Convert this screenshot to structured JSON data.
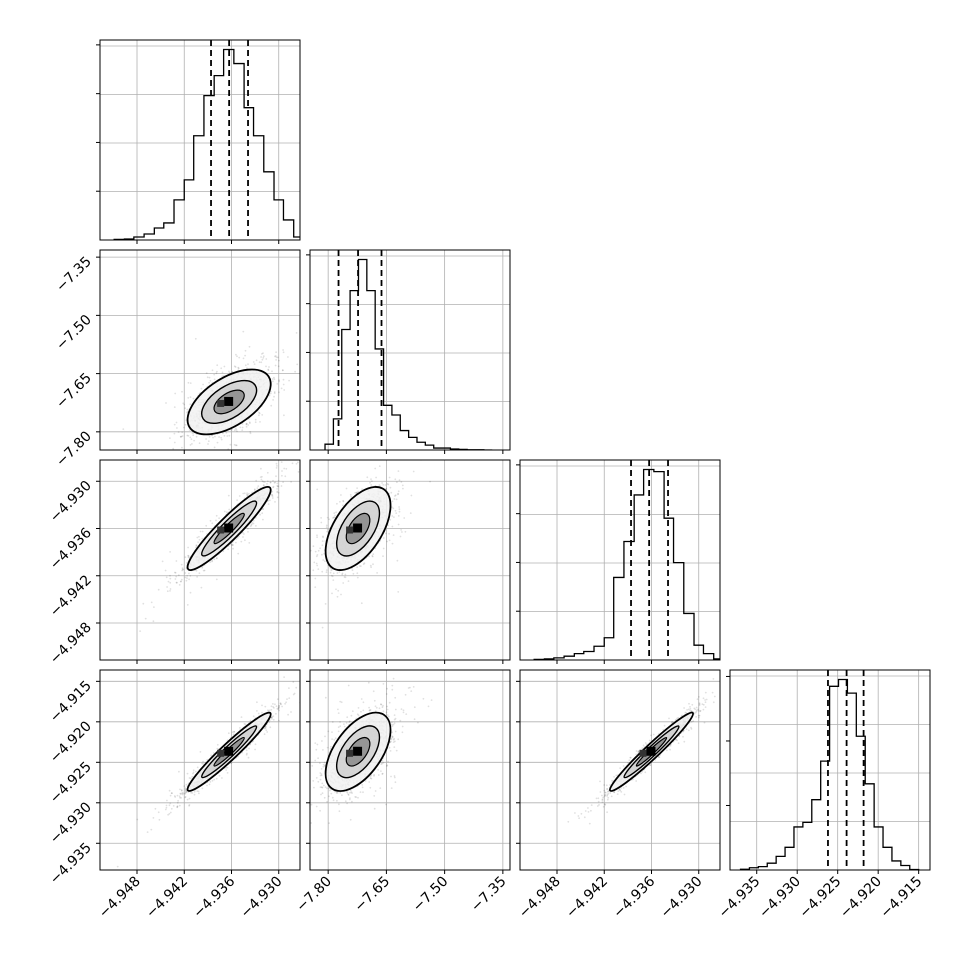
{
  "chart_data": {
    "type": "corner",
    "grid": true,
    "columns": [
      {
        "ticks": [
          "−4.948",
          "−4.942",
          "−4.936",
          "−4.930"
        ],
        "tick_values": [
          -4.948,
          -4.942,
          -4.936,
          -4.93
        ],
        "range": [
          -4.9527,
          -4.9273
        ]
      },
      {
        "ticks": [
          "−7.80",
          "−7.65",
          "−7.50",
          "−7.35"
        ],
        "tick_values": [
          -7.8,
          -7.65,
          -7.5,
          -7.35
        ],
        "range": [
          -7.8468,
          -7.3316
        ]
      },
      {
        "ticks": [
          "−4.948",
          "−4.942",
          "−4.936",
          "−4.930"
        ],
        "tick_values": [
          -4.948,
          -4.942,
          -4.936,
          -4.93
        ],
        "range": [
          -4.9527,
          -4.9273
        ]
      },
      {
        "ticks": [
          "−4.935",
          "−4.930",
          "−4.925",
          "−4.920",
          "−4.915"
        ],
        "tick_values": [
          -4.935,
          -4.93,
          -4.925,
          -4.92,
          -4.915
        ],
        "range": [
          -4.9383,
          -4.9136
        ]
      }
    ],
    "rows": [
      {
        "ticks": [],
        "tick_values": []
      },
      {
        "ticks": [
          "−7.35",
          "−7.50",
          "−7.65",
          "−7.80"
        ],
        "tick_values": [
          -7.35,
          -7.5,
          -7.65,
          -7.8
        ],
        "range": [
          -7.8468,
          -7.3316
        ]
      },
      {
        "ticks": [
          "−4.930",
          "−4.936",
          "−4.942",
          "−4.948"
        ],
        "tick_values": [
          -4.93,
          -4.936,
          -4.942,
          -4.948
        ],
        "range": [
          -4.9527,
          -4.9273
        ]
      },
      {
        "ticks": [
          "−4.915",
          "−4.920",
          "−4.925",
          "−4.930",
          "−4.935"
        ],
        "tick_values": [
          -4.915,
          -4.92,
          -4.925,
          -4.93,
          -4.935
        ],
        "range": [
          -4.9383,
          -4.9136
        ]
      }
    ],
    "histograms": [
      {
        "bins": [
          -4.9509,
          -4.9496,
          -4.9484,
          -4.9471,
          -4.9458,
          -4.9446,
          -4.9433,
          -4.942,
          -4.9408,
          -4.9395,
          -4.9382,
          -4.937,
          -4.9357,
          -4.9344,
          -4.9332,
          -4.9319,
          -4.9306,
          -4.9294,
          -4.9281,
          -4.9268,
          -4.9256
        ],
        "counts": [
          0.003,
          0.005,
          0.015,
          0.03,
          0.06,
          0.085,
          0.2,
          0.3,
          0.52,
          0.72,
          0.82,
          0.95,
          0.88,
          0.66,
          0.52,
          0.34,
          0.2,
          0.1,
          0.015,
          0.005
        ],
        "quantiles": [
          -4.9386,
          -4.9363,
          -4.9339
        ]
      },
      {
        "bins": [
          -7.8081,
          -7.7865,
          -7.765,
          -7.7435,
          -7.7219,
          -7.7004,
          -7.6789,
          -7.6573,
          -7.6358,
          -7.6143,
          -7.5927,
          -7.5712,
          -7.5497,
          -7.5281,
          -7.5066,
          -7.4851,
          -7.4636,
          -7.442,
          -7.4205,
          -7.399,
          -7.3774
        ],
        "counts": [
          0.03,
          0.16,
          0.62,
          0.82,
          0.98,
          0.82,
          0.52,
          0.23,
          0.18,
          0.1,
          0.065,
          0.04,
          0.025,
          0.01,
          0.01,
          0.005,
          0.003,
          0.001,
          0.001,
          0.0
        ],
        "quantiles": [
          -7.7733,
          -7.723,
          -7.6626
        ]
      },
      {
        "bins": [
          -4.9509,
          -4.9496,
          -4.9484,
          -4.9471,
          -4.9458,
          -4.9446,
          -4.9433,
          -4.942,
          -4.9408,
          -4.9395,
          -4.9382,
          -4.937,
          -4.9357,
          -4.9344,
          -4.9332,
          -4.9319,
          -4.9306,
          -4.9294,
          -4.9281,
          -4.9268,
          -4.9256
        ],
        "counts": [
          0.003,
          0.005,
          0.01,
          0.018,
          0.03,
          0.04,
          0.065,
          0.105,
          0.39,
          0.56,
          0.78,
          0.9,
          0.89,
          0.67,
          0.46,
          0.22,
          0.07,
          0.03,
          0.005,
          0.002
        ],
        "quantiles": [
          -4.9386,
          -4.9363,
          -4.9339
        ]
      },
      {
        "bins": [
          -4.937,
          -4.9359,
          -4.9348,
          -4.9337,
          -4.9326,
          -4.9315,
          -4.9304,
          -4.9293,
          -4.9282,
          -4.9271,
          -4.926,
          -4.9249,
          -4.9238,
          -4.9227,
          -4.9216,
          -4.9205,
          -4.9194,
          -4.9183,
          -4.9172,
          -4.9161,
          -4.915
        ],
        "counts": [
          0.003,
          0.01,
          0.015,
          0.03,
          0.06,
          0.1,
          0.19,
          0.21,
          0.31,
          0.48,
          0.81,
          0.84,
          0.78,
          0.59,
          0.38,
          0.19,
          0.1,
          0.04,
          0.02,
          0.002
        ],
        "quantiles": [
          -4.9262,
          -4.9239,
          -4.9218
        ]
      }
    ],
    "pairs": [
      {
        "row": 1,
        "col": 0,
        "center": [
          -4.9363,
          -7.723
        ],
        "sd": [
          0.0024,
          0.038
        ],
        "corr": 0.55
      },
      {
        "row": 2,
        "col": 0,
        "center": [
          -4.9363,
          -4.936
        ],
        "sd": [
          0.0024,
          0.0024
        ],
        "corr": 0.93
      },
      {
        "row": 2,
        "col": 1,
        "center": [
          -7.723,
          -4.936
        ],
        "sd": [
          0.038,
          0.0024
        ],
        "corr": 0.55
      },
      {
        "row": 3,
        "col": 0,
        "center": [
          -4.9363,
          -4.9237
        ],
        "sd": [
          0.0024,
          0.0022
        ],
        "corr": 0.96
      },
      {
        "row": 3,
        "col": 1,
        "center": [
          -7.723,
          -4.9237
        ],
        "sd": [
          0.038,
          0.0022
        ],
        "corr": 0.55
      },
      {
        "row": 3,
        "col": 2,
        "center": [
          -4.936,
          -4.9237
        ],
        "sd": [
          0.0024,
          0.0022
        ],
        "corr": 0.97
      }
    ]
  }
}
